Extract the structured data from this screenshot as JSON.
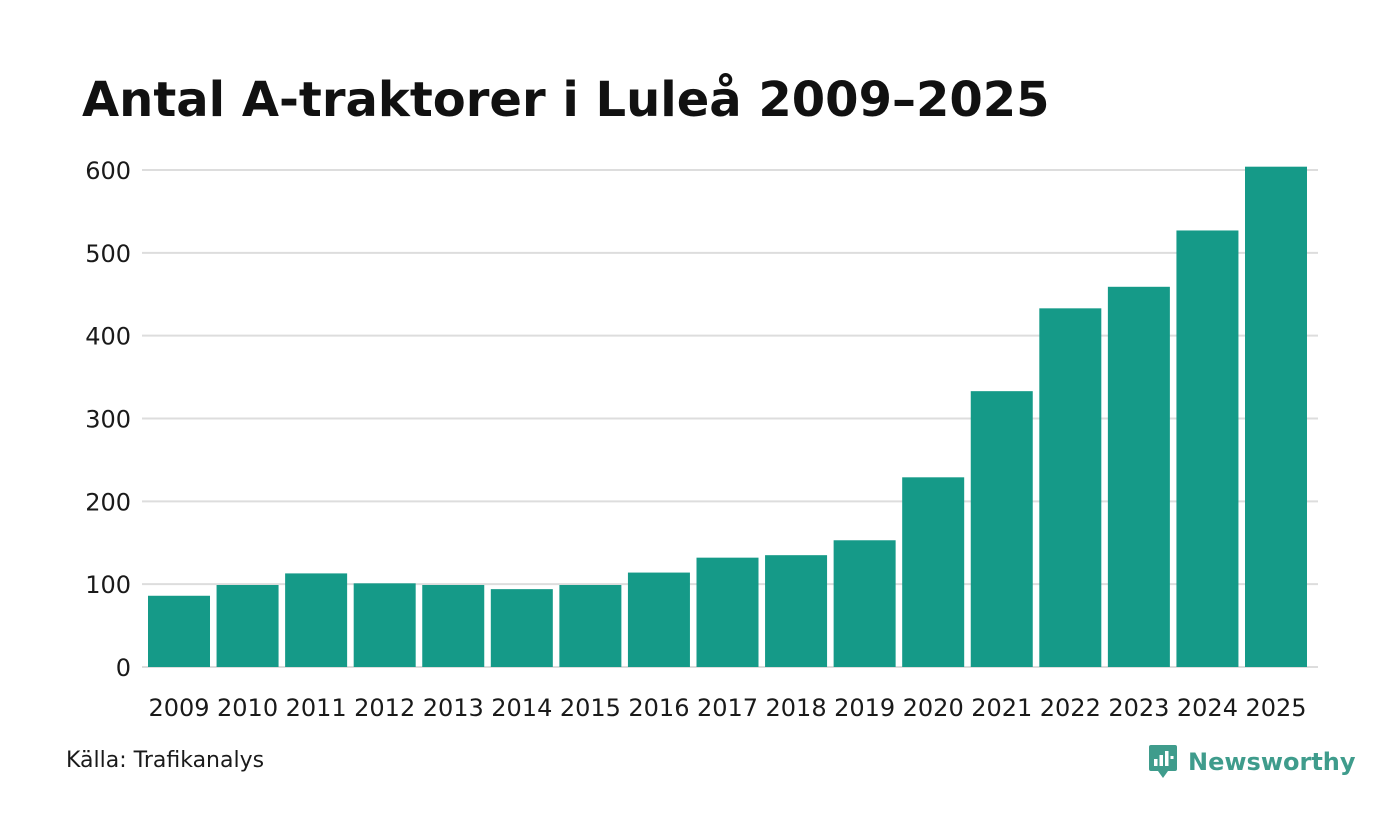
{
  "colors": {
    "bar": "#159a88",
    "grid": "#dddddd",
    "brand": "#3f9c8c"
  },
  "chart_data": {
    "type": "bar",
    "title": "Antal A-traktorer i Luleå 2009–2025",
    "xlabel": "",
    "ylabel": "",
    "categories": [
      "2009",
      "2010",
      "2011",
      "2012",
      "2013",
      "2014",
      "2015",
      "2016",
      "2017",
      "2018",
      "2019",
      "2020",
      "2021",
      "2022",
      "2023",
      "2024",
      "2025"
    ],
    "values": [
      86,
      99,
      113,
      101,
      99,
      94,
      99,
      114,
      132,
      135,
      153,
      229,
      333,
      433,
      459,
      527,
      604
    ],
    "ylim": [
      0,
      600
    ],
    "yticks": [
      0,
      100,
      200,
      300,
      400,
      500,
      600
    ],
    "grid": true
  },
  "footer": {
    "source": "Källa: Trafikanalys",
    "brand_name": "Newsworthy",
    "brand_icon": "newsworthy-logo-icon"
  }
}
